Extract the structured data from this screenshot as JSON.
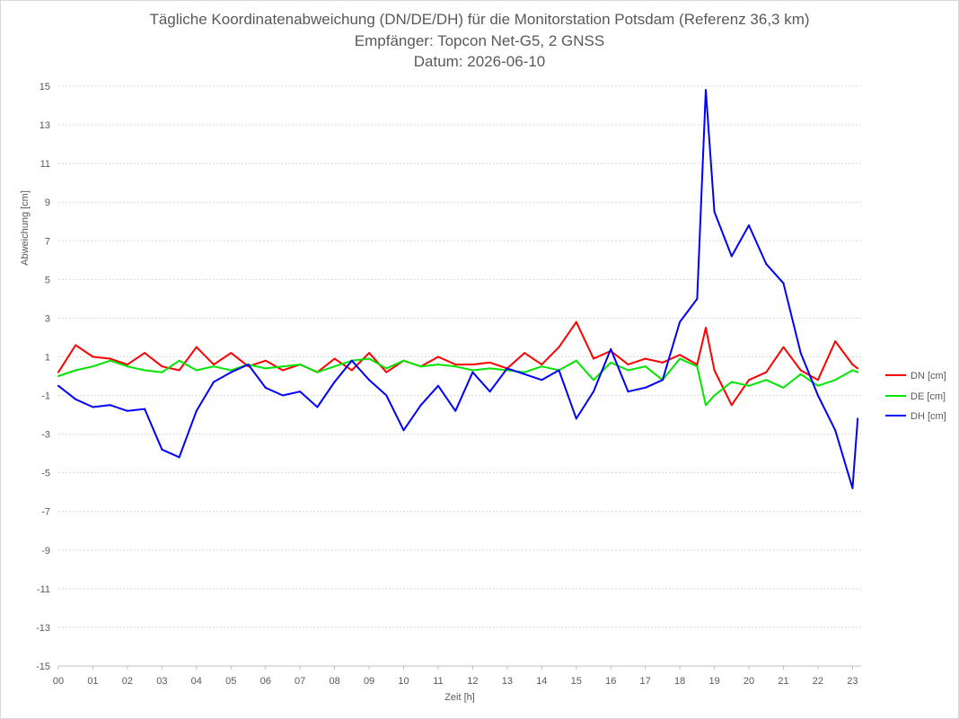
{
  "chart_data": {
    "type": "line",
    "title": "Tägliche Koordinatenabweichung (DN/DE/DH) für die Monitorstation Potsdam (Referenz 36,3 km)",
    "subtitle": "Empfänger: Topcon Net-G5, 2 GNSS",
    "date_line": "Datum: 2026-06-10",
    "xlabel": "Zeit [h]",
    "ylabel": "Abweichung [cm]",
    "ylim": [
      -15,
      15
    ],
    "xlim": [
      0,
      23.25
    ],
    "y_ticks": [
      "15",
      "13",
      "11",
      "9",
      "7",
      "5",
      "3",
      "1",
      "-1",
      "-3",
      "-5",
      "-7",
      "-9",
      "-11",
      "-13",
      "-15"
    ],
    "x_ticks": [
      "00",
      "01",
      "02",
      "03",
      "04",
      "05",
      "06",
      "07",
      "08",
      "09",
      "10",
      "11",
      "12",
      "13",
      "14",
      "15",
      "16",
      "17",
      "18",
      "19",
      "20",
      "21",
      "22",
      "23"
    ],
    "grid": true,
    "legend_position": "right",
    "x": [
      0,
      0.5,
      1,
      1.5,
      2,
      2.5,
      3,
      3.5,
      4,
      4.5,
      5,
      5.5,
      6,
      6.5,
      7,
      7.5,
      8,
      8.5,
      9,
      9.5,
      10,
      10.5,
      11,
      11.5,
      12,
      12.5,
      13,
      13.5,
      14,
      14.5,
      15,
      15.5,
      16,
      16.5,
      17,
      17.5,
      18,
      18.5,
      18.75,
      19,
      19.5,
      20,
      20.5,
      21,
      21.5,
      22,
      22.5,
      23,
      23.15
    ],
    "series": [
      {
        "name": "DN [cm]",
        "color": "#ff0000",
        "values": [
          0.2,
          1.6,
          1.0,
          0.9,
          0.6,
          1.2,
          0.5,
          0.3,
          1.5,
          0.6,
          1.2,
          0.5,
          0.8,
          0.3,
          0.6,
          0.2,
          0.9,
          0.3,
          1.2,
          0.2,
          0.8,
          0.5,
          1.0,
          0.6,
          0.6,
          0.7,
          0.4,
          1.2,
          0.6,
          1.5,
          2.8,
          0.9,
          1.3,
          0.6,
          0.9,
          0.7,
          1.1,
          0.6,
          2.5,
          0.3,
          -1.5,
          -0.2,
          0.2,
          1.5,
          0.3,
          -0.2,
          1.8,
          0.6,
          0.4
        ]
      },
      {
        "name": "DE [cm]",
        "color": "#00e600",
        "values": [
          0.0,
          0.3,
          0.5,
          0.8,
          0.5,
          0.3,
          0.2,
          0.8,
          0.3,
          0.5,
          0.3,
          0.6,
          0.4,
          0.5,
          0.6,
          0.2,
          0.5,
          0.8,
          0.9,
          0.4,
          0.8,
          0.5,
          0.6,
          0.5,
          0.3,
          0.4,
          0.3,
          0.2,
          0.5,
          0.3,
          0.8,
          -0.2,
          0.7,
          0.3,
          0.5,
          -0.2,
          0.9,
          0.5,
          -1.5,
          -1.0,
          -0.3,
          -0.5,
          -0.2,
          -0.6,
          0.1,
          -0.5,
          -0.2,
          0.3,
          0.2
        ]
      },
      {
        "name": "DH [cm]",
        "color": "#0000ff",
        "values": [
          -0.5,
          -1.2,
          -1.6,
          -1.5,
          -1.8,
          -1.7,
          -3.8,
          -4.2,
          -1.8,
          -0.3,
          0.2,
          0.6,
          -0.6,
          -1.0,
          -0.8,
          -1.6,
          -0.3,
          0.8,
          -0.2,
          -1.0,
          -2.8,
          -1.5,
          -0.5,
          -1.8,
          0.2,
          -0.8,
          0.4,
          0.1,
          -0.2,
          0.3,
          -2.2,
          -0.8,
          1.4,
          -0.8,
          -0.6,
          -0.2,
          2.8,
          4.0,
          14.8,
          8.5,
          6.2,
          7.8,
          5.8,
          4.8,
          1.2,
          -1.0,
          -2.8,
          -5.8,
          -2.2
        ]
      }
    ]
  }
}
